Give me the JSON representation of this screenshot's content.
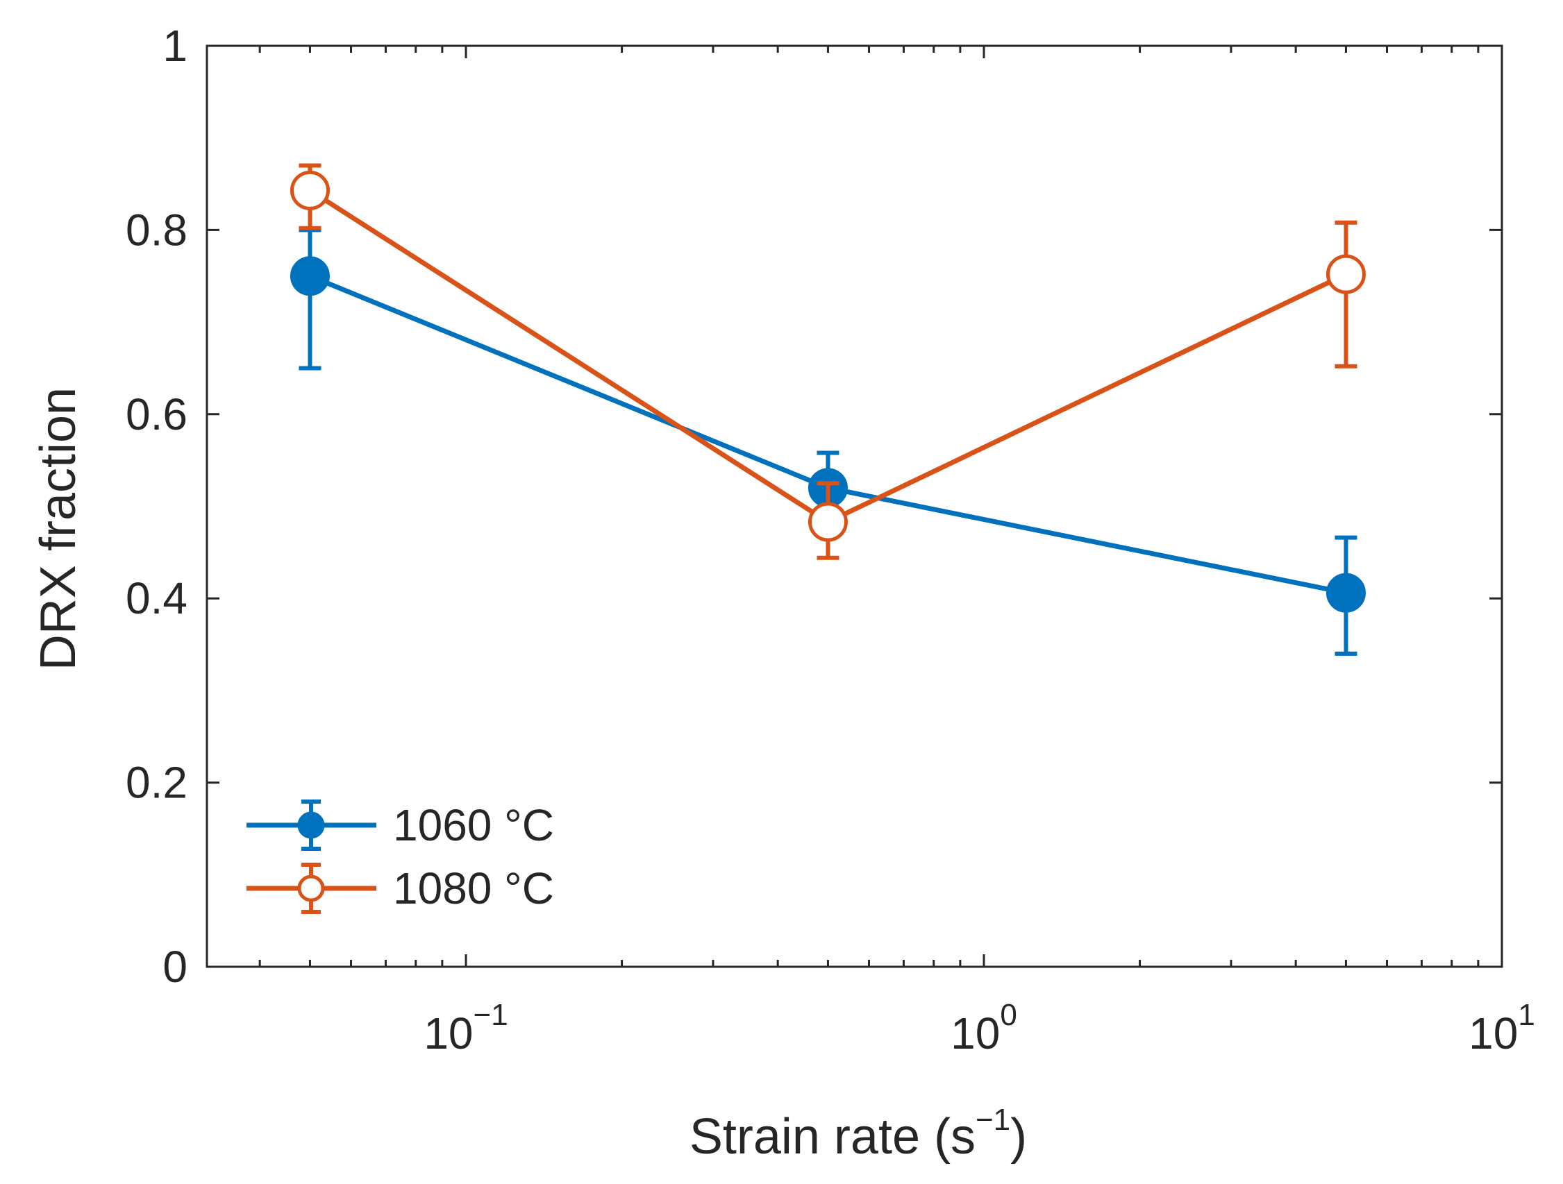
{
  "chart_data": {
    "type": "line",
    "xscale": "log",
    "xlim": [
      0.03162,
      10
    ],
    "ylim": [
      0,
      1
    ],
    "xlabel": "Strain rate (s",
    "xlabel_sup": "−1",
    "xlabel_close": ")",
    "ylabel": "DRX fraction",
    "x": [
      0.05,
      0.5,
      5
    ],
    "series": [
      {
        "name": "1060 °C",
        "color": "#0072BD",
        "marker": "filled-circle",
        "values": [
          0.75,
          0.52,
          0.406
        ],
        "err_low": [
          0.65,
          0.482,
          0.34
        ],
        "err_high": [
          0.8,
          0.558,
          0.466
        ]
      },
      {
        "name": "1080 °C",
        "color": "#D95319",
        "marker": "open-circle",
        "values": [
          0.843,
          0.483,
          0.752
        ],
        "err_low": [
          0.802,
          0.444,
          0.652
        ],
        "err_high": [
          0.87,
          0.525,
          0.808
        ]
      }
    ],
    "y_ticks": [
      0,
      0.2,
      0.4,
      0.6,
      0.8,
      1
    ],
    "y_tick_labels": [
      "0",
      "0.2",
      "0.4",
      "0.6",
      "0.8",
      "1"
    ],
    "x_major_ticks": [
      0.1,
      1,
      10
    ],
    "x_tick_base": "10",
    "x_tick_exponents": [
      "−1",
      "0",
      "1"
    ],
    "x_minor_ticks": [
      0.04,
      0.05,
      0.06,
      0.07,
      0.08,
      0.09,
      0.2,
      0.3,
      0.4,
      0.5,
      0.6,
      0.7,
      0.8,
      0.9,
      2,
      3,
      4,
      5,
      6,
      7,
      8,
      9
    ],
    "legend_position": "bottom-left",
    "grid": false
  }
}
